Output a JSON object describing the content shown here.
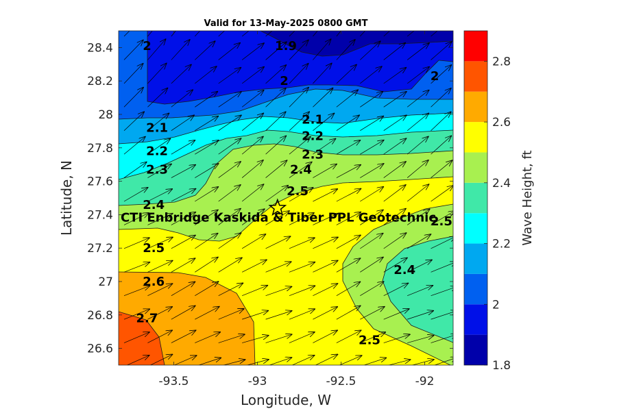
{
  "chart_data": {
    "type": "contour",
    "title": "Valid for 13-May-2025 0800 GMT",
    "xlabel": "Longitude, W",
    "ylabel": "Latitude, N",
    "colorbar_label": "Wave Height, ft",
    "xlim": [
      -93.83,
      -91.83
    ],
    "ylim": [
      26.5,
      28.5
    ],
    "x_ticks": [
      "-93.5",
      "-93",
      "-92.5",
      "-92"
    ],
    "x_tick_values": [
      -93.5,
      -93.0,
      -92.5,
      -92.0
    ],
    "y_ticks": [
      "26.6",
      "26.8",
      "27",
      "27.2",
      "27.4",
      "27.6",
      "27.8",
      "28",
      "28.2",
      "28.4"
    ],
    "y_tick_values": [
      26.6,
      26.8,
      27.0,
      27.2,
      27.4,
      27.6,
      27.8,
      28.0,
      28.2,
      28.4
    ],
    "colorbar_ticks": [
      "1.8",
      "2",
      "2.2",
      "2.4",
      "2.6",
      "2.8"
    ],
    "colorbar_tick_values": [
      1.8,
      2.0,
      2.2,
      2.4,
      2.6,
      2.8
    ],
    "colorbar_range": [
      1.8,
      2.9
    ],
    "levels": [
      1.8,
      1.9,
      2.0,
      2.1,
      2.2,
      2.3,
      2.4,
      2.5,
      2.6,
      2.7,
      2.8,
      2.9
    ],
    "colors": [
      "#0000aa",
      "#0010e8",
      "#0060f0",
      "#00a8f0",
      "#00ffff",
      "#40e8a8",
      "#a8f050",
      "#ffff00",
      "#ffaa00",
      "#ff5500",
      "#ff0000"
    ],
    "contour_labels": [
      {
        "text": "2",
        "lon": -93.66,
        "lat": 28.41
      },
      {
        "text": "1.9",
        "lon": -92.83,
        "lat": 28.41
      },
      {
        "text": "2",
        "lon": -92.84,
        "lat": 28.2
      },
      {
        "text": "2",
        "lon": -91.94,
        "lat": 28.23
      },
      {
        "text": "2.1",
        "lon": -93.6,
        "lat": 27.92
      },
      {
        "text": "2.1",
        "lon": -92.67,
        "lat": 27.97
      },
      {
        "text": "2.2",
        "lon": -93.6,
        "lat": 27.78
      },
      {
        "text": "2.2",
        "lon": -92.67,
        "lat": 27.87
      },
      {
        "text": "2.3",
        "lon": -93.6,
        "lat": 27.67
      },
      {
        "text": "2.3",
        "lon": -92.67,
        "lat": 27.76
      },
      {
        "text": "2.4",
        "lon": -92.74,
        "lat": 27.67
      },
      {
        "text": "2.5",
        "lon": -92.76,
        "lat": 27.54
      },
      {
        "text": "2.4",
        "lon": -93.62,
        "lat": 27.46
      },
      {
        "text": "2.5",
        "lon": -91.9,
        "lat": 27.36
      },
      {
        "text": "2.5",
        "lon": -93.62,
        "lat": 27.2
      },
      {
        "text": "2.4",
        "lon": -92.12,
        "lat": 27.07
      },
      {
        "text": "2.6",
        "lon": -93.62,
        "lat": 27.0
      },
      {
        "text": "2.7",
        "lon": -93.66,
        "lat": 26.78
      },
      {
        "text": "2.5",
        "lon": -92.33,
        "lat": 26.65
      }
    ],
    "site": {
      "label": "CTI Enbridge  Kaskida & Tiber PPL Geotechnic",
      "lon": -92.88,
      "lat": 27.44,
      "marker": "star"
    },
    "vectors": "wave direction arrows, NE-directed, on regular grid"
  }
}
